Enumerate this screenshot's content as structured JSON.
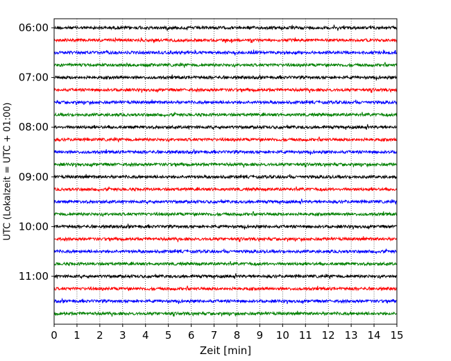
{
  "chart_data": {
    "type": "line",
    "subtype": "helicorder",
    "title": "",
    "xlabel": "Zeit  [min]",
    "ylabel": "UTC (Lokalzeit = UTC + 01:00)",
    "xlim": [
      0,
      15
    ],
    "x_ticks": [
      "0",
      "1",
      "2",
      "3",
      "4",
      "5",
      "6",
      "7",
      "8",
      "9",
      "10",
      "11",
      "12",
      "13",
      "14",
      "15"
    ],
    "y_tick_labels": [
      "06:00",
      "07:00",
      "08:00",
      "09:00",
      "10:00",
      "11:00"
    ],
    "trace_interval_minutes": 15,
    "start_time": "06:00",
    "trace_count": 24,
    "trace_colors": [
      "#000000",
      "#ff0000",
      "#0000ff",
      "#008000"
    ],
    "vertical_gridlines": "dotted, every 1 min",
    "amplitude": "small random noise around each baseline"
  }
}
